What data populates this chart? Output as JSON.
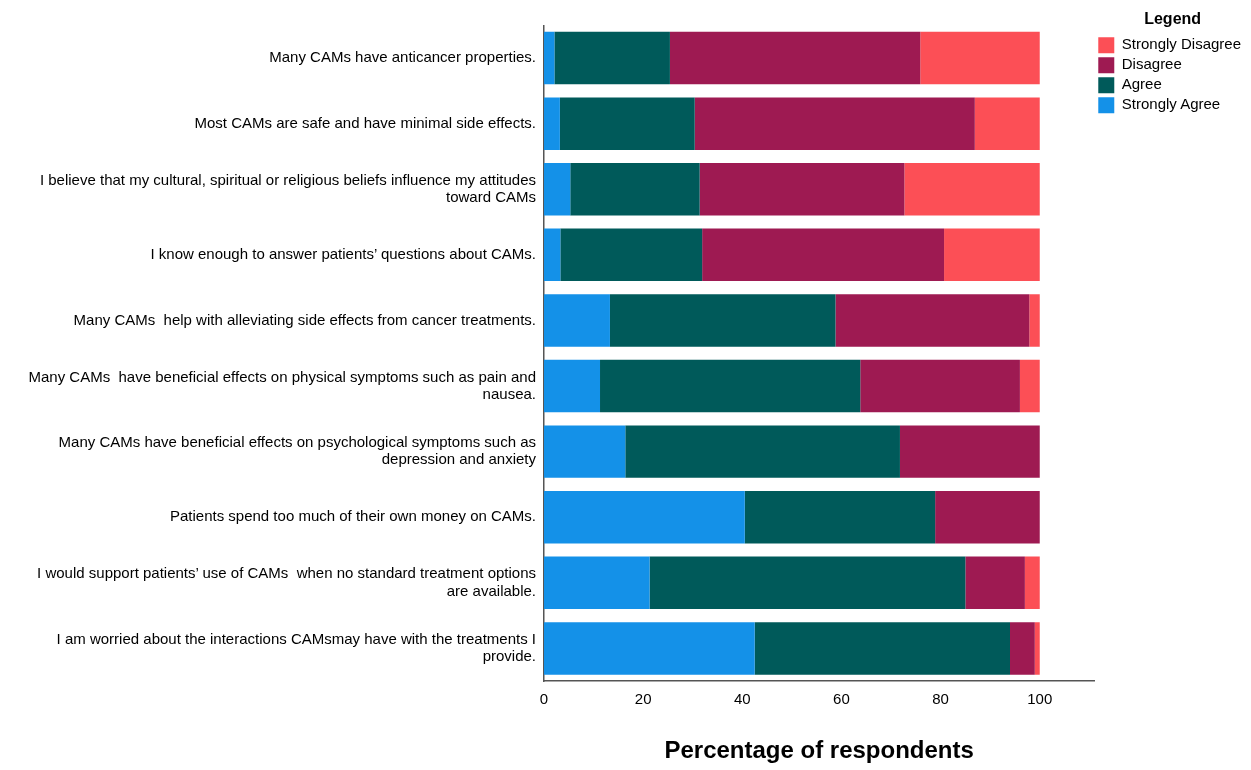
{
  "chart_data": {
    "type": "bar",
    "orientation": "horizontal",
    "stacked": true,
    "categories": [
      "Many CAMs have anticancer properties.",
      "Most CAMs are safe and have minimal side effects.",
      "I believe that my cultural, spiritual or religious beliefs influence my attitudes toward CAMs",
      "I know enough to answer patients’ questions about CAMs.",
      "Many CAMs  help with alleviating side effects from cancer treatments.",
      "Many CAMs  have beneficial effects on physical symptoms such as pain and nausea.",
      "Many CAMs have beneficial effects on psychological symptoms such as depression and anxiety",
      "Patients spend too much of their own money on CAMs.",
      "I would support patients’ use of CAMs  when no standard treatment options are available.",
      "I am worried about the interactions CAMsmay have with the treatments I provide."
    ],
    "series": [
      {
        "name": "Strongly Agree",
        "color": "#1491e8",
        "values": [
          2.1,
          3.2,
          5.3,
          3.3,
          13.3,
          11.3,
          16.4,
          40.5,
          21.3,
          42.5
        ]
      },
      {
        "name": "Agree",
        "color": "#005a5a",
        "values": [
          23.3,
          27.2,
          26.1,
          28.6,
          45.5,
          52.5,
          55.4,
          38.4,
          63.7,
          51.5
        ]
      },
      {
        "name": "Disagree",
        "color": "#9e1a52",
        "values": [
          50.5,
          56.5,
          41.3,
          48.8,
          39.1,
          32.2,
          28.2,
          21.1,
          12.0,
          5.0
        ]
      },
      {
        "name": "Strongly Disagree",
        "color": "#fc4f56",
        "values": [
          24.1,
          13.1,
          27.3,
          19.3,
          2.1,
          4.0,
          null,
          null,
          3.0,
          1.0
        ]
      }
    ],
    "xlim": [
      0,
      111
    ],
    "xticks": [
      0,
      20,
      40,
      60,
      80,
      100
    ],
    "xlabel": "Percentage of respondents",
    "legend": "top right",
    "legend_title": "Legend"
  }
}
